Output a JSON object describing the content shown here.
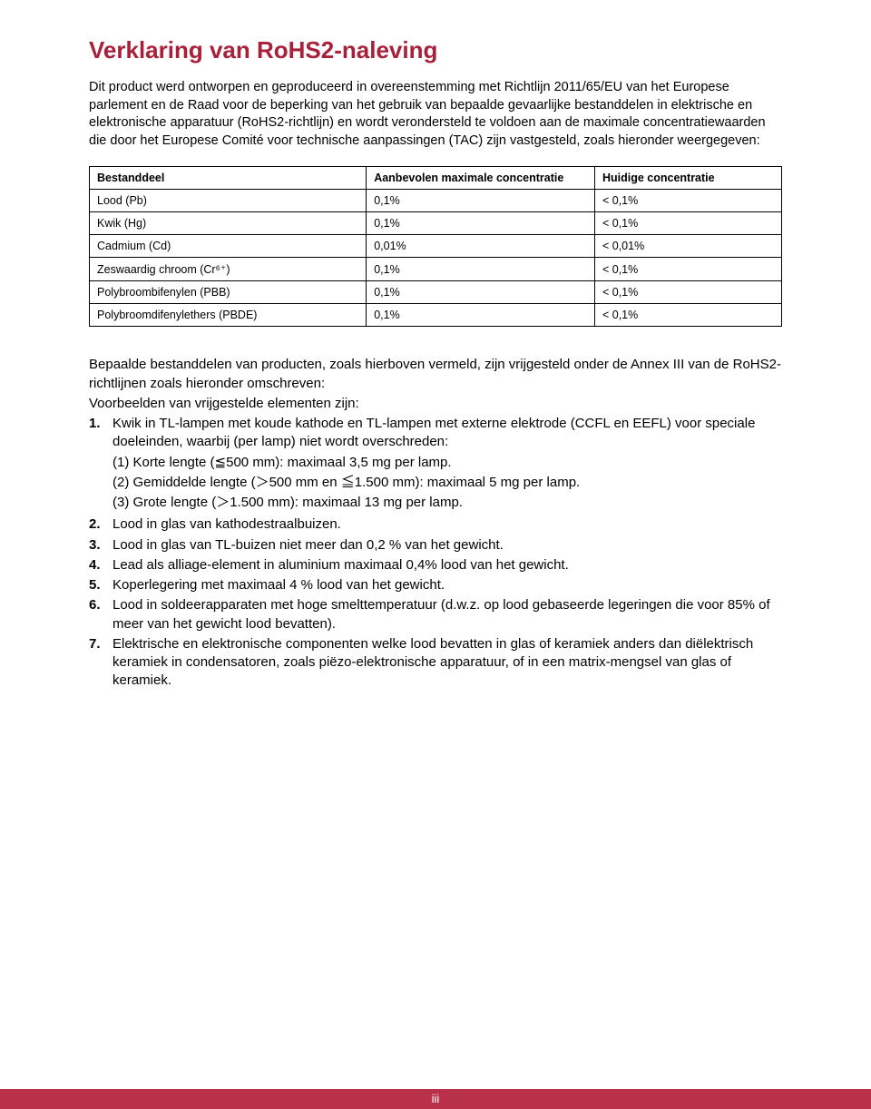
{
  "title": "Verklaring van RoHS2-naleving",
  "title_color": "#a8203a",
  "intro": "Dit product werd ontworpen en geproduceerd in overeenstemming met Richtlijn 2011/65/EU van het Europese parlement en de Raad voor de beperking van het gebruik van bepaalde gevaarlijke bestanddelen in elektrische en elektronische apparatuur (RoHS2-richtlijn) en wordt verondersteld te voldoen aan de maximale concentratiewaarden die door het Europese Comité voor technische aanpassingen (TAC) zijn vastgesteld, zoals hieronder weergegeven:",
  "table": {
    "columns": [
      "Bestanddeel",
      "Aanbevolen maximale concentratie",
      "Huidige concentratie"
    ],
    "col_widths": [
      "40%",
      "33%",
      "27%"
    ],
    "rows": [
      [
        "Lood (Pb)",
        "0,1%",
        "< 0,1%"
      ],
      [
        "Kwik (Hg)",
        "0,1%",
        "< 0,1%"
      ],
      [
        "Cadmium (Cd)",
        "0,01%",
        "< 0,01%"
      ],
      [
        "Zeswaardig chroom (Cr⁶⁺)",
        "0,1%",
        "< 0,1%"
      ],
      [
        "Polybroombifenylen (PBB)",
        "0,1%",
        "< 0,1%"
      ],
      [
        "Polybroomdifenylethers (PBDE)",
        "0,1%",
        "< 0,1%"
      ]
    ],
    "border_color": "#000000"
  },
  "exempt_intro": [
    "Bepaalde bestanddelen van producten, zoals hierboven vermeld, zijn vrijgesteld onder de Annex III van de RoHS2-richtlijnen zoals hieronder omschreven:",
    "Voorbeelden van vrijgestelde elementen zijn:"
  ],
  "list": [
    {
      "num": "1.",
      "text": "Kwik in TL-lampen met koude kathode en TL-lampen met externe elektrode (CCFL en EEFL) voor speciale doeleinden, waarbij (per lamp) niet wordt overschreden:",
      "sub": [
        "(1) Korte lengte (≦500 mm): maximaal 3,5 mg per lamp.",
        "(2) Gemiddelde lengte (＞500 mm en ≦1.500 mm): maximaal 5 mg per lamp.",
        "(3) Grote lengte (＞1.500 mm): maximaal 13 mg per lamp."
      ]
    },
    {
      "num": "2.",
      "text": "Lood in glas van kathodestraalbuizen."
    },
    {
      "num": "3.",
      "text": "Lood in glas van TL-buizen niet meer dan 0,2 % van het gewicht."
    },
    {
      "num": "4.",
      "text": "Lead als alliage-element in aluminium maximaal 0,4% lood van het gewicht."
    },
    {
      "num": "5.",
      "text": "Koperlegering met maximaal 4 % lood van het gewicht."
    },
    {
      "num": "6.",
      "text": "Lood in soldeerapparaten met hoge smelttemperatuur (d.w.z. op lood gebaseerde legeringen die voor 85% of meer van het gewicht lood bevatten)."
    },
    {
      "num": "7.",
      "text": "Elektrische en elektronische componenten welke lood bevatten in glas of keramiek anders dan diëlektrisch keramiek in condensatoren, zoals piëzo-elektronische apparatuur, of in een matrix-mengsel van glas of keramiek."
    }
  ],
  "footer": {
    "text": "iii",
    "bg_color": "#b83149",
    "color": "#ffffff"
  }
}
